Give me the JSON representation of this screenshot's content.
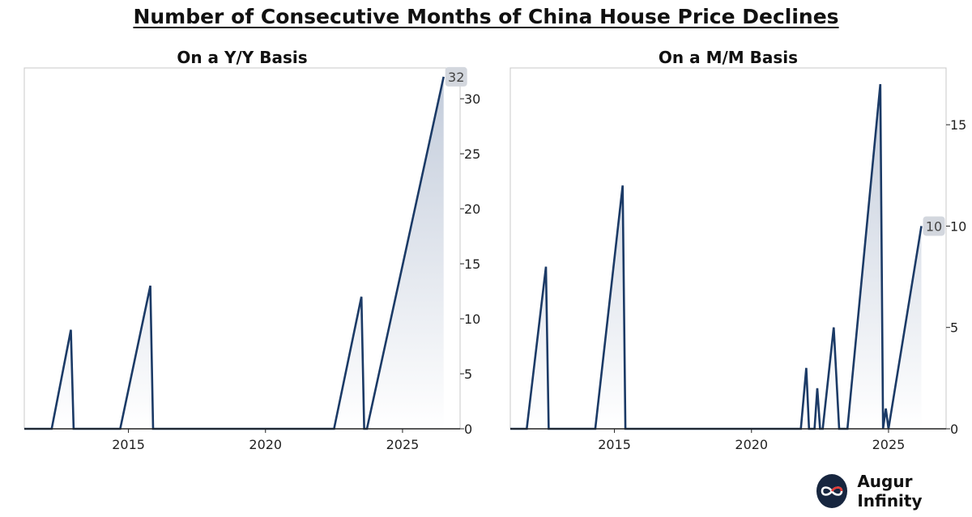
{
  "title": "Number of Consecutive Months of China House Price Declines",
  "brand": {
    "name": "Augur Infinity",
    "logo_icon": "infinity-loop-icon"
  },
  "colors": {
    "line": "#1b3a66",
    "fill_top": "#c3ccdb",
    "fill_bottom": "#ffffff",
    "frame": "#c8c8c8",
    "label_badge": "#d3d7de"
  },
  "chart_data": [
    {
      "type": "area",
      "title": "On a Y/Y Basis",
      "xlabel": "",
      "ylabel": "",
      "xlim": [
        2011.2,
        2027.1
      ],
      "ylim": [
        0,
        32.8
      ],
      "x_ticks": [
        2015,
        2020,
        2025
      ],
      "y_ticks": [
        0,
        5,
        10,
        15,
        20,
        25,
        30
      ],
      "grid": false,
      "y_axis_side": "right",
      "last_value_label": "32",
      "series": [
        {
          "name": "Y/Y consecutive declines",
          "x": [
            2011.2,
            2012.2,
            2012.9,
            2013.0,
            2014.7,
            2015.8,
            2015.9,
            2022.5,
            2023.5,
            2023.6,
            2023.7,
            2026.5
          ],
          "values": [
            0,
            0,
            9,
            0,
            0,
            13,
            0,
            0,
            12,
            0,
            0,
            32
          ]
        }
      ]
    },
    {
      "type": "area",
      "title": "On a M/M Basis",
      "xlabel": "",
      "ylabel": "",
      "xlim": [
        2011.2,
        2027.1
      ],
      "ylim": [
        0,
        17.8
      ],
      "x_ticks": [
        2015,
        2020,
        2025
      ],
      "y_ticks": [
        0,
        5,
        10,
        15
      ],
      "grid": false,
      "y_axis_side": "right",
      "last_value_label": "10",
      "series": [
        {
          "name": "M/M consecutive declines",
          "x": [
            2011.2,
            2011.8,
            2012.5,
            2012.6,
            2014.3,
            2015.3,
            2015.4,
            2021.8,
            2022.0,
            2022.1,
            2022.3,
            2022.4,
            2022.5,
            2022.6,
            2023.0,
            2023.2,
            2023.5,
            2024.7,
            2024.8,
            2024.9,
            2025.0,
            2026.2
          ],
          "values": [
            0,
            0,
            8,
            0,
            0,
            12,
            0,
            0,
            3,
            0,
            0,
            2,
            0,
            0,
            5,
            0,
            0,
            17,
            0,
            1,
            0,
            10
          ]
        }
      ]
    }
  ]
}
